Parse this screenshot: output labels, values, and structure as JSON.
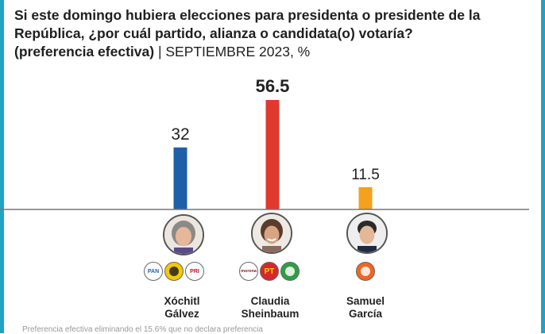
{
  "title": {
    "question": "Si este domingo hubiera elecciones para presidenta o presidente de la República, ¿por cuál partido, alianza o candidata(o) votaría?",
    "subtitle_bold": "(preferencia efectiva)",
    "subtitle_rest": "| SEPTIEMBRE 2023, %"
  },
  "chart_data": {
    "type": "bar",
    "title": "Si este domingo hubiera elecciones para presidenta o presidente de la República, ¿por cuál partido, alianza o candidata(o) votaría?",
    "subtitle": "(preferencia efectiva) | SEPTIEMBRE 2023, %",
    "categories": [
      "Xóchitl Gálvez",
      "Claudia Sheinbaum",
      "Samuel García"
    ],
    "values": [
      32,
      56.5,
      11.5
    ],
    "value_labels": [
      "32",
      "56.5",
      "11.5"
    ],
    "ylim": [
      0,
      60
    ],
    "colors": [
      "#1f5fa8",
      "#e03a2f",
      "#f4a11d"
    ],
    "xlabel": "",
    "ylabel": "%"
  },
  "candidates": [
    {
      "name_line1": "Xóchitl",
      "name_line2": "Gálvez",
      "avatar_icon": "woman-gray-hair-portrait",
      "logos": [
        {
          "text": "PAN",
          "bg": "#ffffff",
          "fg": "#1f5fa8",
          "icon": "pan-logo-icon"
        },
        {
          "text": "",
          "bg": "#f5c800",
          "fg": "#222222",
          "icon": "prd-sun-logo-icon"
        },
        {
          "text": "PRI",
          "bg": "#ffffff",
          "fg": "#c8102e",
          "icon": "pri-logo-icon"
        }
      ]
    },
    {
      "name_line1": "Claudia",
      "name_line2": "Sheinbaum",
      "avatar_icon": "woman-smiling-portrait",
      "logos": [
        {
          "text": "morena",
          "bg": "#ffffff",
          "fg": "#8b1e2d",
          "icon": "morena-logo-icon"
        },
        {
          "text": "PT",
          "bg": "#d8262f",
          "fg": "#ffde00",
          "icon": "pt-logo-icon"
        },
        {
          "text": "",
          "bg": "#2f9e44",
          "fg": "#ffffff",
          "icon": "pvem-toucan-logo-icon"
        }
      ]
    },
    {
      "name_line1": "Samuel",
      "name_line2": "García",
      "avatar_icon": "man-dark-hair-portrait",
      "logos": [
        {
          "text": "",
          "bg": "#f26522",
          "fg": "#ffffff",
          "icon": "mc-orange-logo-icon"
        }
      ]
    }
  ],
  "footnote": "Preferencia efectiva eliminando el 15.6% que no declara preferencia"
}
